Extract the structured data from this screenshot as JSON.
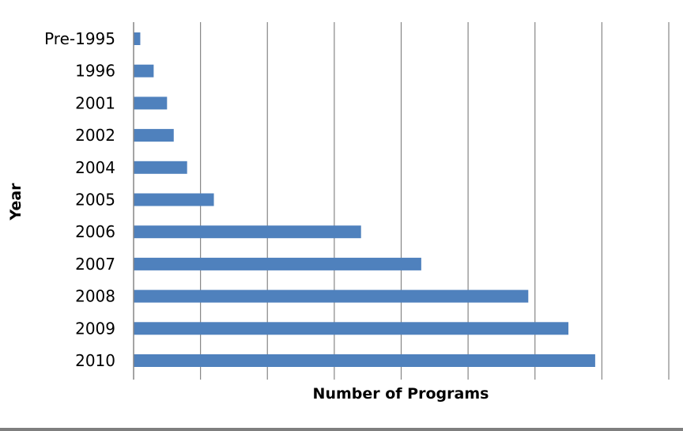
{
  "chart_data": {
    "type": "bar",
    "orientation": "horizontal",
    "title": "",
    "xlabel": "Number of Programs",
    "ylabel": "Year",
    "categories": [
      "Pre-1995",
      "1996",
      "2001",
      "2002",
      "2004",
      "2005",
      "2006",
      "2007",
      "2008",
      "2009",
      "2010"
    ],
    "values": [
      0.5,
      1.5,
      2.5,
      3,
      4,
      6,
      17,
      21.5,
      29.5,
      32.5,
      34.5
    ],
    "xlim": [
      0,
      40
    ],
    "x_grid_step": 5,
    "grid": true,
    "legend": "none",
    "bar_color": "#4f81bd"
  }
}
